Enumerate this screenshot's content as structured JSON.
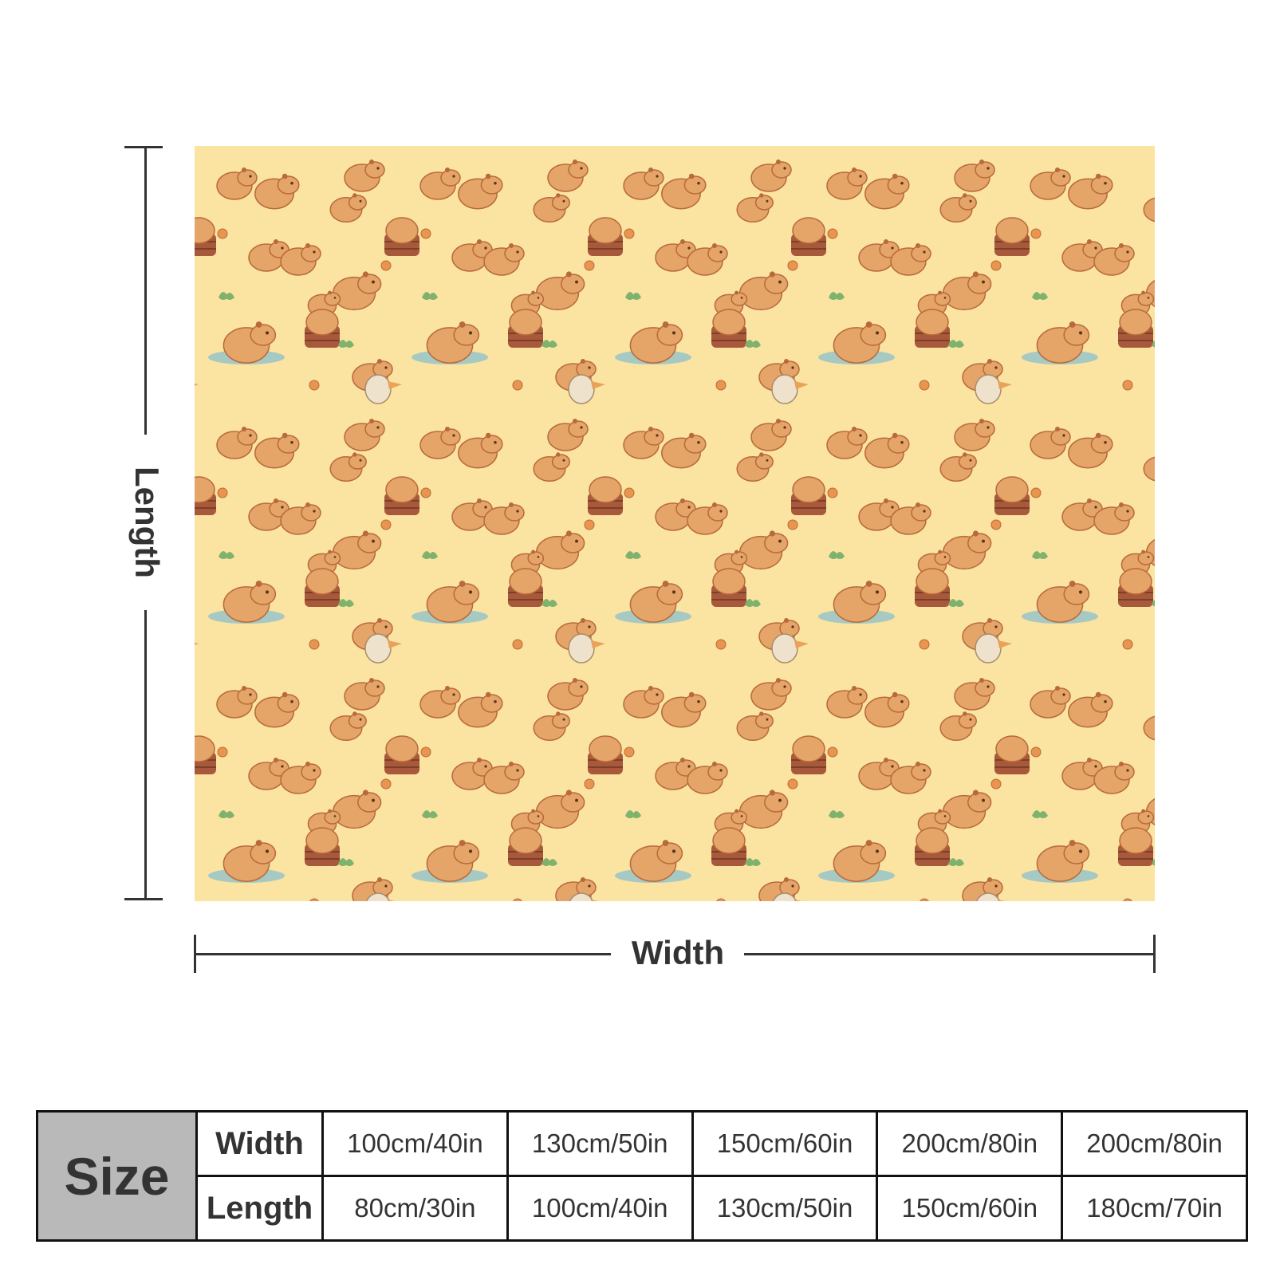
{
  "product_image": {
    "description_icon": "capybara-pattern-blanket",
    "colors": {
      "background": "#fbe3a1",
      "capybara": "#e5a468",
      "outline": "#b86a3a",
      "water": "#9cc5c7",
      "leaf": "#7fb36d",
      "barrel": "#a8593b"
    }
  },
  "dimensions": {
    "length_label": "Length",
    "width_label": "Width"
  },
  "size_table": {
    "header": "Size",
    "rows": [
      {
        "label": "Width",
        "cells": [
          "100cm/40in",
          "130cm/50in",
          "150cm/60in",
          "200cm/80in",
          "200cm/80in"
        ]
      },
      {
        "label": "Length",
        "cells": [
          "80cm/30in",
          "100cm/40in",
          "130cm/50in",
          "150cm/60in",
          "180cm/70in"
        ]
      }
    ]
  }
}
